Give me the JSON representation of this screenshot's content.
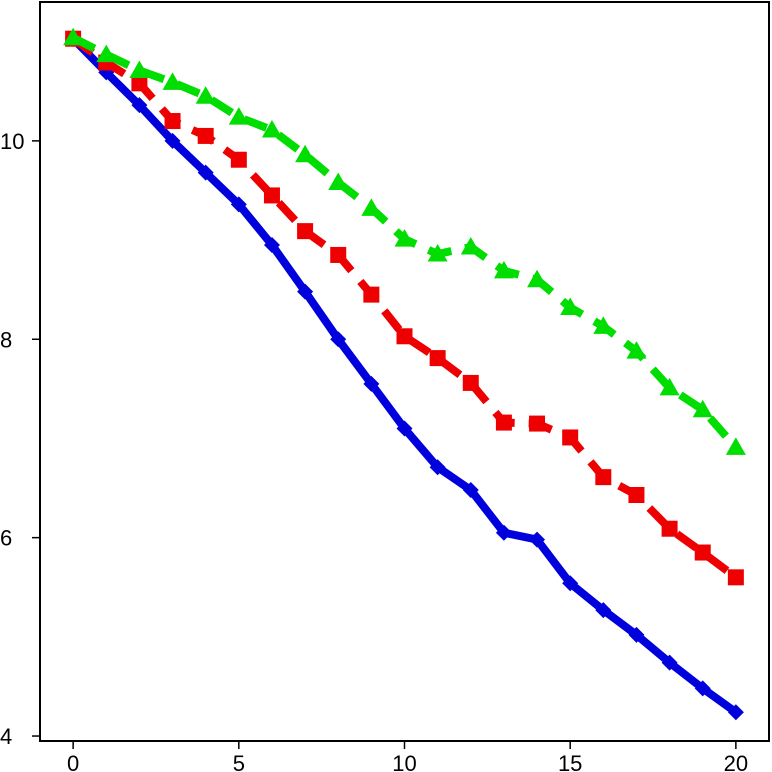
{
  "chart_data": {
    "type": "line",
    "title": "",
    "xlabel": "",
    "ylabel": "",
    "xlim": [
      -1,
      21
    ],
    "ylim": [
      3.95,
      11.4
    ],
    "x_ticks": [
      0,
      5,
      10,
      15,
      20
    ],
    "y_ticks": [
      4,
      6,
      8,
      10
    ],
    "x": [
      0,
      1,
      2,
      3,
      4,
      5,
      6,
      7,
      8,
      9,
      10,
      11,
      12,
      13,
      14,
      15,
      16,
      17,
      18,
      19,
      20
    ],
    "grid": false,
    "legend": "none",
    "series": [
      {
        "color": "#0000dd",
        "line_style": "solid",
        "marker": "diamond",
        "values": [
          11.03,
          10.69,
          10.36,
          10.0,
          9.68,
          9.36,
          8.95,
          8.48,
          8.0,
          7.55,
          7.1,
          6.71,
          6.48,
          6.05,
          5.98,
          5.54,
          5.27,
          5.02,
          4.74,
          4.48,
          4.24
        ]
      },
      {
        "color": "#ee0000",
        "line_style": "dashed",
        "marker": "square",
        "values": [
          11.03,
          10.79,
          10.58,
          10.2,
          10.05,
          9.81,
          9.45,
          9.09,
          8.85,
          8.45,
          8.03,
          7.81,
          7.56,
          7.16,
          7.15,
          7.01,
          6.61,
          6.43,
          6.09,
          5.85,
          5.6
        ]
      },
      {
        "color": "#00dd00",
        "line_style": "dashed",
        "marker": "triangle",
        "values": [
          11.04,
          10.87,
          10.71,
          10.59,
          10.45,
          10.24,
          10.11,
          9.86,
          9.58,
          9.32,
          9.01,
          8.86,
          8.93,
          8.69,
          8.6,
          8.32,
          8.13,
          7.88,
          7.51,
          7.29,
          6.91
        ]
      }
    ]
  }
}
